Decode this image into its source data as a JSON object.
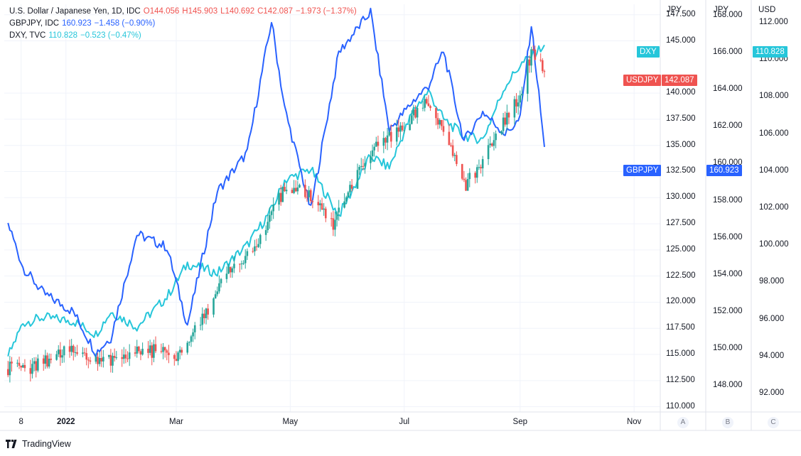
{
  "legend": {
    "usdjpy": {
      "name": "U.S. Dollar / Japanese Yen, 1D, IDC",
      "o": "O144.056",
      "h": "H145.903",
      "l": "L140.692",
      "c": "C142.087",
      "chg": "−1.973 (−1.37%)"
    },
    "gbpjpy": {
      "name": "GBPJPY, IDC",
      "value": "160.923",
      "chg": "−1.458 (−0.90%)"
    },
    "dxy": {
      "name": "DXY, TVC",
      "value": "110.828",
      "chg": "−0.523 (−0.47%)"
    }
  },
  "axes": {
    "a_head": "JPY",
    "b_head": "JPY",
    "c_head": "USD",
    "a_ticks": [
      "147.500",
      "145.000",
      "140.000",
      "137.500",
      "135.000",
      "132.500",
      "130.000",
      "127.500",
      "125.000",
      "122.500",
      "120.000",
      "117.500",
      "115.000",
      "112.500",
      "110.000"
    ],
    "b_ticks": [
      "168.000",
      "166.000",
      "164.000",
      "162.000",
      "160.000",
      "158.000",
      "156.000",
      "154.000",
      "152.000",
      "150.000",
      "148.000"
    ],
    "c_ticks": [
      "112.000",
      "110.000",
      "108.000",
      "106.000",
      "104.000",
      "102.000",
      "100.000",
      "98.000",
      "96.000",
      "94.000",
      "92.000"
    ],
    "x_ticks": [
      "8",
      "2022",
      "Mar",
      "May",
      "Jul",
      "Sep",
      "Nov"
    ],
    "scale_buttons": [
      "A",
      "B",
      "C"
    ]
  },
  "tags": {
    "dxy_label": "DXY",
    "dxy_value": "110.828",
    "usdjpy_label": "USDJPY",
    "usdjpy_value": "142.087",
    "gbpjpy_label": "GBPJPY",
    "gbpjpy_value": "160.923"
  },
  "colors": {
    "up": "#26a69a",
    "down": "#ef5350",
    "gbpjpy": "#2962ff",
    "dxy": "#26c6da",
    "grid": "#f0f3fa"
  },
  "footer": {
    "brand": "TradingView"
  },
  "chart_data": {
    "type": "line",
    "x_range": [
      "2021-11-29",
      "2022-11-15"
    ],
    "series": [
      {
        "name": "USDJPY",
        "style": "candlestick",
        "axis": "A (JPY)",
        "ylim": [
          109.5,
          148.5
        ],
        "x": [
          "2021-12-01",
          "2021-12-15",
          "2022-01-03",
          "2022-01-17",
          "2022-02-01",
          "2022-02-15",
          "2022-03-01",
          "2022-03-15",
          "2022-03-28",
          "2022-04-12",
          "2022-04-28",
          "2022-05-10",
          "2022-05-24",
          "2022-06-06",
          "2022-06-17",
          "2022-06-29",
          "2022-07-14",
          "2022-07-22",
          "2022-08-02",
          "2022-08-12",
          "2022-08-24",
          "2022-09-01",
          "2022-09-07",
          "2022-09-14"
        ],
        "values": [
          113.6,
          113.8,
          115.6,
          114.2,
          115.0,
          115.4,
          114.9,
          118.6,
          122.5,
          125.4,
          130.8,
          130.4,
          127.4,
          132.0,
          135.0,
          136.7,
          139.1,
          136.8,
          131.1,
          133.4,
          137.3,
          139.7,
          144.0,
          142.1
        ]
      },
      {
        "name": "GBPJPY",
        "axis": "B (JPY)",
        "ylim": [
          146.6,
          168.6
        ],
        "x": [
          "2021-12-01",
          "2021-12-09",
          "2021-12-20",
          "2022-01-05",
          "2022-01-17",
          "2022-01-25",
          "2022-02-08",
          "2022-02-24",
          "2022-03-07",
          "2022-03-23",
          "2022-04-08",
          "2022-04-21",
          "2022-04-28",
          "2022-05-12",
          "2022-05-27",
          "2022-06-13",
          "2022-06-23",
          "2022-07-06",
          "2022-07-14",
          "2022-07-22",
          "2022-08-02",
          "2022-08-12",
          "2022-08-24",
          "2022-09-01",
          "2022-09-07",
          "2022-09-14"
        ],
        "values": [
          156.8,
          154.4,
          153.0,
          152.0,
          149.8,
          150.6,
          156.2,
          155.5,
          151.3,
          158.5,
          160.6,
          167.7,
          163.0,
          157.5,
          166.0,
          168.2,
          161.8,
          163.4,
          164.2,
          166.1,
          161.2,
          162.8,
          161.6,
          162.4,
          167.5,
          160.9
        ]
      },
      {
        "name": "DXY",
        "axis": "C (USD)",
        "ylim": [
          91.0,
          113.0
        ],
        "x": [
          "2021-12-01",
          "2021-12-09",
          "2021-12-20",
          "2022-01-05",
          "2022-01-17",
          "2022-01-25",
          "2022-02-08",
          "2022-02-24",
          "2022-03-07",
          "2022-03-23",
          "2022-04-08",
          "2022-04-21",
          "2022-04-28",
          "2022-05-12",
          "2022-05-27",
          "2022-06-13",
          "2022-06-23",
          "2022-07-06",
          "2022-07-14",
          "2022-07-22",
          "2022-08-02",
          "2022-08-12",
          "2022-08-24",
          "2022-09-01",
          "2022-09-07",
          "2022-09-14"
        ],
        "values": [
          94.0,
          95.8,
          96.1,
          95.9,
          95.2,
          96.4,
          95.6,
          97.2,
          99.0,
          98.5,
          100.0,
          101.9,
          103.5,
          104.1,
          101.6,
          104.8,
          104.2,
          107.3,
          108.3,
          106.8,
          105.9,
          105.7,
          108.6,
          109.7,
          110.2,
          110.8
        ]
      }
    ]
  }
}
